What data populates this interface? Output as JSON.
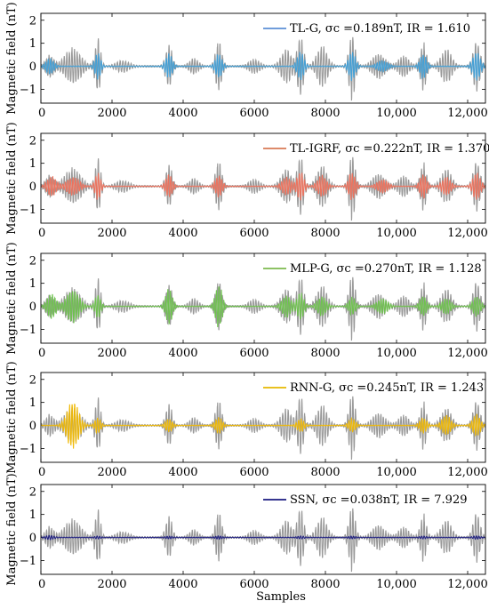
{
  "chart_data": [
    {
      "type": "line",
      "ylabel": "Magnetic field (nT)",
      "xlim": [
        0,
        12500
      ],
      "ylim": [
        -1.6,
        2.3
      ],
      "x_ticks": [
        0,
        2000,
        4000,
        6000,
        8000,
        10000,
        12000
      ],
      "x_tick_labels": [
        "0",
        "2000",
        "4000",
        "6000",
        "8000",
        "10,000",
        "12,000"
      ],
      "y_ticks": [
        -1,
        0,
        1,
        2
      ],
      "y_tick_labels": [
        "−1",
        "0",
        "1",
        "2"
      ],
      "legend_position": "top-right",
      "series": [
        {
          "role": "reference",
          "color": "#999999"
        },
        {
          "name": "TL-G, σc =0.189nT, IR = 1.610",
          "color": "#5B8FD6",
          "overlay_color": "#3E9FD8"
        }
      ]
    },
    {
      "type": "line",
      "ylabel": "Magnetic field (nT)",
      "xlim": [
        0,
        12500
      ],
      "ylim": [
        -1.6,
        2.3
      ],
      "x_ticks": [
        0,
        2000,
        4000,
        6000,
        8000,
        10000,
        12000
      ],
      "x_tick_labels": [
        "0",
        "2000",
        "4000",
        "6000",
        "8000",
        "10,000",
        "12,000"
      ],
      "y_ticks": [
        -1,
        0,
        1,
        2
      ],
      "y_tick_labels": [
        "−1",
        "0",
        "1",
        "2"
      ],
      "legend_position": "top-right",
      "series": [
        {
          "role": "reference",
          "color": "#999999"
        },
        {
          "name": "TL-IGRF, σc =0.222nT, IR = 1.370",
          "color": "#D87A55",
          "overlay_color": "#F0705A"
        }
      ]
    },
    {
      "type": "line",
      "ylabel": "Magnetic field (nT)",
      "xlim": [
        0,
        12500
      ],
      "ylim": [
        -1.6,
        2.3
      ],
      "x_ticks": [
        0,
        2000,
        4000,
        6000,
        8000,
        10000,
        12000
      ],
      "x_tick_labels": [
        "0",
        "2000",
        "4000",
        "6000",
        "8000",
        "10,000",
        "12,000"
      ],
      "y_ticks": [
        -1,
        0,
        1,
        2
      ],
      "y_tick_labels": [
        "−1",
        "0",
        "1",
        "2"
      ],
      "legend_position": "top-right",
      "series": [
        {
          "role": "reference",
          "color": "#999999"
        },
        {
          "name": "MLP-G, σc =0.270nT, IR = 1.128",
          "color": "#7DBA4E",
          "overlay_color": "#6CC24A"
        }
      ]
    },
    {
      "type": "line",
      "ylabel": "Magnetic field (nT)",
      "xlim": [
        0,
        12500
      ],
      "ylim": [
        -1.6,
        2.3
      ],
      "x_ticks": [
        0,
        2000,
        4000,
        6000,
        8000,
        10000,
        12000
      ],
      "x_tick_labels": [
        "0",
        "2000",
        "4000",
        "6000",
        "8000",
        "10,000",
        "12,000"
      ],
      "y_ticks": [
        -1,
        0,
        1,
        2
      ],
      "y_tick_labels": [
        "−1",
        "0",
        "1",
        "2"
      ],
      "legend_position": "top-right",
      "series": [
        {
          "role": "reference",
          "color": "#999999"
        },
        {
          "name": "RNN-G, σc =0.245nT, IR = 1.243",
          "color": "#E6B800",
          "overlay_color": "#F0B800"
        }
      ]
    },
    {
      "type": "line",
      "xlabel": "Samples",
      "ylabel": "Magnetic field (nT)",
      "xlim": [
        0,
        12500
      ],
      "ylim": [
        -1.6,
        2.3
      ],
      "x_ticks": [
        0,
        2000,
        4000,
        6000,
        8000,
        10000,
        12000
      ],
      "x_tick_labels": [
        "0",
        "2000",
        "4000",
        "6000",
        "8000",
        "10,000",
        "12,000"
      ],
      "y_ticks": [
        -1,
        0,
        1,
        2
      ],
      "y_tick_labels": [
        "−1",
        "0",
        "1",
        "2"
      ],
      "legend_position": "top-right",
      "series": [
        {
          "role": "reference",
          "color": "#999999"
        },
        {
          "name": "SSN, σc =0.038nT, IR = 7.929",
          "color": "#1A1A80",
          "overlay_color": "#1A1A80"
        }
      ]
    }
  ],
  "signal_bursts": [
    {
      "center": 250,
      "width": 450,
      "amp": 0.5
    },
    {
      "center": 900,
      "width": 900,
      "amp": 0.8
    },
    {
      "center": 1600,
      "width": 300,
      "amp": 1.25
    },
    {
      "center": 2300,
      "width": 700,
      "amp": 0.25
    },
    {
      "center": 3600,
      "width": 350,
      "amp": 1.0
    },
    {
      "center": 4300,
      "width": 500,
      "amp": 0.35
    },
    {
      "center": 5000,
      "width": 350,
      "amp": 1.15
    },
    {
      "center": 6000,
      "width": 600,
      "amp": 0.3
    },
    {
      "center": 6900,
      "width": 600,
      "amp": 0.75
    },
    {
      "center": 7300,
      "width": 350,
      "amp": 1.35
    },
    {
      "center": 7900,
      "width": 600,
      "amp": 0.9
    },
    {
      "center": 8750,
      "width": 350,
      "amp": 1.5
    },
    {
      "center": 9500,
      "width": 700,
      "amp": 0.55
    },
    {
      "center": 10200,
      "width": 600,
      "amp": 0.45
    },
    {
      "center": 10750,
      "width": 350,
      "amp": 1.05
    },
    {
      "center": 11400,
      "width": 600,
      "amp": 0.75
    },
    {
      "center": 12250,
      "width": 400,
      "amp": 1.1
    }
  ],
  "model_bursts": [
    [
      {
        "center": 250,
        "width": 450,
        "amp": 0.35
      },
      {
        "center": 1600,
        "width": 320,
        "amp": 0.6
      },
      {
        "center": 3600,
        "width": 380,
        "amp": 0.55
      },
      {
        "center": 5000,
        "width": 380,
        "amp": 0.55
      },
      {
        "center": 7300,
        "width": 380,
        "amp": 0.65
      },
      {
        "center": 8750,
        "width": 380,
        "amp": 0.65
      },
      {
        "center": 9600,
        "width": 600,
        "amp": 0.25
      },
      {
        "center": 10750,
        "width": 380,
        "amp": 0.55
      },
      {
        "center": 12250,
        "width": 420,
        "amp": 0.65
      }
    ],
    [
      {
        "center": 300,
        "width": 500,
        "amp": 0.45
      },
      {
        "center": 900,
        "width": 700,
        "amp": 0.4
      },
      {
        "center": 1600,
        "width": 320,
        "amp": 0.6
      },
      {
        "center": 3600,
        "width": 380,
        "amp": 0.5
      },
      {
        "center": 5000,
        "width": 380,
        "amp": 0.5
      },
      {
        "center": 6900,
        "width": 500,
        "amp": 0.4
      },
      {
        "center": 7300,
        "width": 380,
        "amp": 0.65
      },
      {
        "center": 7900,
        "width": 500,
        "amp": 0.5
      },
      {
        "center": 8750,
        "width": 380,
        "amp": 0.65
      },
      {
        "center": 9600,
        "width": 600,
        "amp": 0.3
      },
      {
        "center": 10750,
        "width": 380,
        "amp": 0.55
      },
      {
        "center": 11400,
        "width": 500,
        "amp": 0.4
      },
      {
        "center": 12250,
        "width": 420,
        "amp": 0.6
      }
    ],
    [
      {
        "center": 300,
        "width": 500,
        "amp": 0.55
      },
      {
        "center": 900,
        "width": 700,
        "amp": 0.75
      },
      {
        "center": 1600,
        "width": 320,
        "amp": 0.55
      },
      {
        "center": 3600,
        "width": 380,
        "amp": 0.8
      },
      {
        "center": 5000,
        "width": 380,
        "amp": 1.0
      },
      {
        "center": 6900,
        "width": 500,
        "amp": 0.5
      },
      {
        "center": 7300,
        "width": 380,
        "amp": 0.6
      },
      {
        "center": 7900,
        "width": 500,
        "amp": 0.45
      },
      {
        "center": 8750,
        "width": 380,
        "amp": 0.4
      },
      {
        "center": 9600,
        "width": 600,
        "amp": 0.35
      },
      {
        "center": 10750,
        "width": 380,
        "amp": 0.45
      },
      {
        "center": 11400,
        "width": 500,
        "amp": 0.35
      },
      {
        "center": 12250,
        "width": 420,
        "amp": 0.45
      }
    ],
    [
      {
        "center": 900,
        "width": 650,
        "amp": 1.1
      },
      {
        "center": 1600,
        "width": 320,
        "amp": 0.35
      },
      {
        "center": 3600,
        "width": 380,
        "amp": 0.3
      },
      {
        "center": 5000,
        "width": 380,
        "amp": 0.35
      },
      {
        "center": 7300,
        "width": 380,
        "amp": 0.3
      },
      {
        "center": 8750,
        "width": 380,
        "amp": 0.3
      },
      {
        "center": 10750,
        "width": 380,
        "amp": 0.35
      },
      {
        "center": 11400,
        "width": 500,
        "amp": 0.45
      },
      {
        "center": 12250,
        "width": 420,
        "amp": 0.5
      }
    ],
    [
      {
        "center": 250,
        "width": 450,
        "amp": 0.08
      },
      {
        "center": 1600,
        "width": 320,
        "amp": 0.05
      },
      {
        "center": 3600,
        "width": 380,
        "amp": 0.05
      },
      {
        "center": 5000,
        "width": 380,
        "amp": 0.06
      },
      {
        "center": 7300,
        "width": 380,
        "amp": 0.05
      },
      {
        "center": 8750,
        "width": 380,
        "amp": 0.05
      },
      {
        "center": 10750,
        "width": 380,
        "amp": 0.05
      },
      {
        "center": 12250,
        "width": 420,
        "amp": 0.06
      }
    ]
  ]
}
